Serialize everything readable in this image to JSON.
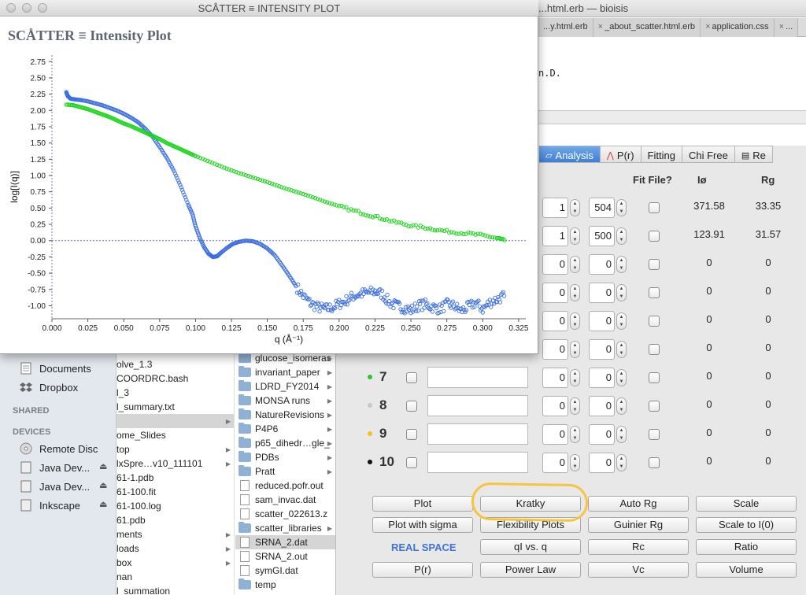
{
  "editor": {
    "title": "...html.erb — bioisis",
    "tabs": [
      "...y.html.erb",
      "_about_scatter.html.erb",
      "application.css",
      "..."
    ],
    "code_fragment": "n.D."
  },
  "plot_window": {
    "title": "SCÅTTER ≡ INTENSITY PLOT",
    "heading": "SCÅTTER ≡ Intensity Plot"
  },
  "chart_data": {
    "type": "scatter",
    "title": "",
    "xlabel": "q (Å⁻¹)",
    "ylabel": "log[I(q)]",
    "xlim": [
      0.0,
      0.33
    ],
    "ylim": [
      -1.2,
      2.85
    ],
    "xticks": [
      "0.000",
      "0.025",
      "0.050",
      "0.075",
      "0.100",
      "0.125",
      "0.150",
      "0.175",
      "0.200",
      "0.225",
      "0.250",
      "0.275",
      "0.300",
      "0.325"
    ],
    "yticks": [
      "2.75",
      "2.50",
      "2.25",
      "2.00",
      "1.75",
      "1.50",
      "1.25",
      "1.00",
      "0.75",
      "0.50",
      "0.25",
      "0.00",
      "-0.25",
      "-0.50",
      "-0.75",
      "-1.00"
    ],
    "reference_line_y": 0.0,
    "grid": false,
    "series": [
      {
        "color": "#3c6fe0",
        "marker": "open-circle",
        "points": [
          [
            0.01,
            2.28
          ],
          [
            0.011,
            2.22
          ],
          [
            0.013,
            2.18
          ],
          [
            0.016,
            2.17
          ],
          [
            0.02,
            2.16
          ],
          [
            0.025,
            2.14
          ],
          [
            0.03,
            2.11
          ],
          [
            0.035,
            2.08
          ],
          [
            0.04,
            2.04
          ],
          [
            0.045,
            2.0
          ],
          [
            0.05,
            1.95
          ],
          [
            0.055,
            1.89
          ],
          [
            0.06,
            1.82
          ],
          [
            0.065,
            1.72
          ],
          [
            0.07,
            1.6
          ],
          [
            0.075,
            1.44
          ],
          [
            0.08,
            1.27
          ],
          [
            0.085,
            1.07
          ],
          [
            0.09,
            0.82
          ],
          [
            0.095,
            0.55
          ],
          [
            0.098,
            0.4
          ],
          [
            0.1,
            0.22
          ],
          [
            0.103,
            0.04
          ],
          [
            0.106,
            -0.1
          ],
          [
            0.109,
            -0.2
          ],
          [
            0.112,
            -0.25
          ],
          [
            0.115,
            -0.24
          ],
          [
            0.118,
            -0.18
          ],
          [
            0.122,
            -0.11
          ],
          [
            0.126,
            -0.05
          ],
          [
            0.13,
            -0.02
          ],
          [
            0.135,
            0.0
          ],
          [
            0.14,
            -0.01
          ],
          [
            0.145,
            -0.05
          ],
          [
            0.15,
            -0.12
          ],
          [
            0.155,
            -0.22
          ],
          [
            0.16,
            -0.37
          ],
          [
            0.165,
            -0.53
          ],
          [
            0.17,
            -0.7
          ],
          [
            0.175,
            -0.85
          ],
          [
            0.18,
            -0.96
          ],
          [
            0.185,
            -1.02
          ],
          [
            0.19,
            -1.05
          ],
          [
            0.195,
            -1.03
          ],
          [
            0.2,
            -0.97
          ],
          [
            0.205,
            -0.92
          ],
          [
            0.21,
            -0.85
          ],
          [
            0.215,
            -0.82
          ],
          [
            0.22,
            -0.8
          ],
          [
            0.225,
            -0.78
          ],
          [
            0.23,
            -0.82
          ],
          [
            0.235,
            -0.95
          ],
          [
            0.24,
            -1.0
          ],
          [
            0.245,
            -1.03
          ],
          [
            0.25,
            -1.07
          ],
          [
            0.255,
            -1.0
          ],
          [
            0.26,
            -0.98
          ],
          [
            0.265,
            -1.02
          ],
          [
            0.27,
            -1.05
          ],
          [
            0.275,
            -0.98
          ],
          [
            0.28,
            -1.0
          ],
          [
            0.285,
            -1.08
          ],
          [
            0.29,
            -1.02
          ],
          [
            0.295,
            -0.95
          ],
          [
            0.3,
            -1.05
          ],
          [
            0.305,
            -0.95
          ],
          [
            0.31,
            -0.9
          ],
          [
            0.315,
            -0.85
          ]
        ],
        "noise_from_x": 0.17
      },
      {
        "color": "#18d518",
        "marker": "open-circle",
        "points": [
          [
            0.01,
            2.09
          ],
          [
            0.015,
            2.08
          ],
          [
            0.02,
            2.05
          ],
          [
            0.025,
            2.02
          ],
          [
            0.03,
            1.98
          ],
          [
            0.035,
            1.94
          ],
          [
            0.04,
            1.9
          ],
          [
            0.045,
            1.85
          ],
          [
            0.05,
            1.8
          ],
          [
            0.055,
            1.76
          ],
          [
            0.06,
            1.71
          ],
          [
            0.065,
            1.66
          ],
          [
            0.07,
            1.61
          ],
          [
            0.075,
            1.56
          ],
          [
            0.08,
            1.5
          ],
          [
            0.085,
            1.45
          ],
          [
            0.09,
            1.4
          ],
          [
            0.095,
            1.35
          ],
          [
            0.1,
            1.3
          ],
          [
            0.11,
            1.21
          ],
          [
            0.12,
            1.12
          ],
          [
            0.13,
            1.04
          ],
          [
            0.14,
            0.97
          ],
          [
            0.15,
            0.9
          ],
          [
            0.16,
            0.82
          ],
          [
            0.17,
            0.75
          ],
          [
            0.18,
            0.68
          ],
          [
            0.19,
            0.6
          ],
          [
            0.2,
            0.53
          ],
          [
            0.21,
            0.46
          ],
          [
            0.22,
            0.4
          ],
          [
            0.23,
            0.34
          ],
          [
            0.24,
            0.28
          ],
          [
            0.25,
            0.23
          ],
          [
            0.26,
            0.2
          ],
          [
            0.27,
            0.16
          ],
          [
            0.28,
            0.13
          ],
          [
            0.29,
            0.11
          ],
          [
            0.3,
            0.08
          ],
          [
            0.31,
            0.04
          ],
          [
            0.315,
            0.01
          ]
        ],
        "noise_from_x": 0.2
      }
    ]
  },
  "finder": {
    "sidebar": {
      "items_top": [
        "Documents",
        "Dropbox"
      ],
      "shared_header": "SHARED",
      "devices_header": "DEVICES",
      "devices": [
        "Remote Disc",
        "Java Dev...",
        "Java Dev...",
        "Inkscape"
      ]
    },
    "col1": [
      "olve_1.3",
      "COORDRC.bash",
      "l_3",
      "l_summary.txt",
      "",
      "ome_Slides",
      "top",
      "lxSpre…v10_111101",
      "61-1.pdb",
      "61-100.fit",
      "61-100.log",
      "61.pdb",
      "ments",
      "loads",
      "box",
      "nan",
      "l_summation"
    ],
    "col2": [
      "glucose_isomeras",
      "invariant_paper",
      "LDRD_FY2014",
      "MONSA runs",
      "NatureRevisions",
      "P4P6",
      "p65_dihedr…gle_",
      "PDBs",
      "Pratt",
      "reduced.pofr.out",
      "sam_invac.dat",
      "scatter_022613.z",
      "scatter_libraries",
      "SRNA_2.dat",
      "SRNA_2.out",
      "symGI.dat",
      "temp"
    ]
  },
  "panel": {
    "tabs": [
      "Analysis",
      "P(r)",
      "Fitting",
      "Chi Free",
      "Re"
    ],
    "headers": {
      "fit_file": "Fit File?",
      "i0": "Iø",
      "rg": "Rg"
    },
    "rows": [
      {
        "num": "",
        "dot_color": "",
        "start": "1",
        "end": "504",
        "i0": "371.58",
        "rg": "33.35"
      },
      {
        "num": "",
        "dot_color": "",
        "start": "1",
        "end": "500",
        "i0": "123.91",
        "rg": "31.57"
      },
      {
        "num": "",
        "dot_color": "",
        "start": "0",
        "end": "0",
        "i0": "0",
        "rg": "0"
      },
      {
        "num": "",
        "dot_color": "",
        "start": "0",
        "end": "0",
        "i0": "0",
        "rg": "0"
      },
      {
        "num": "",
        "dot_color": "",
        "start": "0",
        "end": "0",
        "i0": "0",
        "rg": "0"
      },
      {
        "num": "",
        "dot_color": "",
        "start": "0",
        "end": "0",
        "i0": "0",
        "rg": "0"
      },
      {
        "num": "7",
        "dot_color": "#2fc32f",
        "start": "0",
        "end": "0",
        "i0": "0",
        "rg": "0"
      },
      {
        "num": "8",
        "dot_color": "#c8c8c8",
        "start": "0",
        "end": "0",
        "i0": "0",
        "rg": "0"
      },
      {
        "num": "9",
        "dot_color": "#f2c21c",
        "start": "0",
        "end": "0",
        "i0": "0",
        "rg": "0"
      },
      {
        "num": "10",
        "dot_color": "#111111",
        "start": "0",
        "end": "0",
        "i0": "0",
        "rg": "0"
      }
    ],
    "buttons": {
      "plot": "Plot",
      "kratky": "Kratky",
      "auto_rg": "Auto Rg",
      "scale": "Scale",
      "plot_sigma": "Plot with sigma",
      "flex": "Flexibility Plots",
      "guinier": "Guinier Rg",
      "scale_i0": "Scale to I(0)",
      "real_space": "REAL SPACE",
      "qi_q": "qI vs. q",
      "rc": "Rc",
      "ratio": "Ratio",
      "pr": "P(r)",
      "power_law": "Power Law",
      "vc": "Vc",
      "volume": "Volume"
    }
  }
}
